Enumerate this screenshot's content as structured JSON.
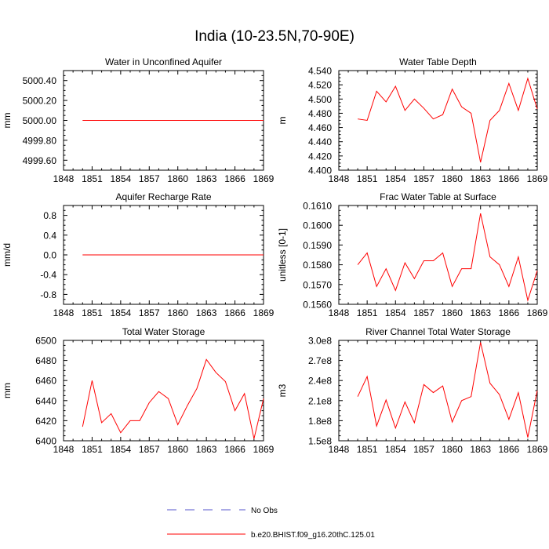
{
  "figure": {
    "title": "India (10-23.5N,70-90E)"
  },
  "legend": {
    "placement": "bottom-center",
    "entries": [
      {
        "label": "No Obs",
        "color": "#5555cc",
        "dash": true
      },
      {
        "label": "b.e20.BHIST.f09_g16.20thC.125.01",
        "color": "#ff0000",
        "dash": false
      }
    ]
  },
  "chart_data": [
    {
      "type": "line",
      "title": "Water in Unconfined Aquifer",
      "ylabel": "mm",
      "xlim": [
        1848,
        1869
      ],
      "ylim": [
        4999.5,
        5000.5
      ],
      "xticks": [
        1848,
        1851,
        1854,
        1857,
        1860,
        1863,
        1866,
        1869
      ],
      "xticklabels": [
        "1848",
        "1851",
        "1854",
        "1857",
        "1860",
        "1863",
        "1866",
        "1869"
      ],
      "yticks": [
        4999.6,
        4999.8,
        5000.0,
        5000.2,
        5000.4
      ],
      "yticklabels": [
        "4999.60",
        "4999.80",
        "5000.00",
        "5000.20",
        "5000.40"
      ],
      "series": [
        {
          "color": "#ff0000",
          "x": [
            1850,
            1869
          ],
          "y": [
            5000.0,
            5000.0
          ]
        }
      ]
    },
    {
      "type": "line",
      "title": "Water Table Depth",
      "ylabel": "m",
      "xlim": [
        1848,
        1869
      ],
      "ylim": [
        4.4,
        4.54
      ],
      "xticks": [
        1848,
        1851,
        1854,
        1857,
        1860,
        1863,
        1866,
        1869
      ],
      "xticklabels": [
        "1848",
        "1851",
        "1854",
        "1857",
        "1860",
        "1863",
        "1866",
        "1869"
      ],
      "yticks": [
        4.4,
        4.42,
        4.44,
        4.46,
        4.48,
        4.5,
        4.52,
        4.54
      ],
      "yticklabels": [
        "4.400",
        "4.420",
        "4.440",
        "4.460",
        "4.480",
        "4.500",
        "4.520",
        "4.540"
      ],
      "series": [
        {
          "color": "#ff0000",
          "x": [
            1850,
            1851,
            1852,
            1853,
            1854,
            1855,
            1856,
            1857,
            1858,
            1859,
            1860,
            1861,
            1862,
            1863,
            1864,
            1865,
            1866,
            1867,
            1868,
            1869
          ],
          "y": [
            4.472,
            4.47,
            4.511,
            4.496,
            4.518,
            4.484,
            4.5,
            4.487,
            4.472,
            4.478,
            4.514,
            4.489,
            4.48,
            4.411,
            4.47,
            4.484,
            4.522,
            4.484,
            4.529,
            4.486
          ]
        }
      ]
    },
    {
      "type": "line",
      "title": "Aquifer Recharge Rate",
      "ylabel": "mm/d",
      "xlim": [
        1848,
        1869
      ],
      "ylim": [
        -1.0,
        1.0
      ],
      "xticks": [
        1848,
        1851,
        1854,
        1857,
        1860,
        1863,
        1866,
        1869
      ],
      "xticklabels": [
        "1848",
        "1851",
        "1854",
        "1857",
        "1860",
        "1863",
        "1866",
        "1869"
      ],
      "yticks": [
        -0.8,
        -0.4,
        0.0,
        0.4,
        0.8
      ],
      "yticklabels": [
        "-0.8",
        "-0.4",
        "0.0",
        "0.4",
        "0.8"
      ],
      "series": [
        {
          "color": "#ff0000",
          "x": [
            1850,
            1869
          ],
          "y": [
            0.0,
            0.0
          ]
        }
      ]
    },
    {
      "type": "line",
      "title": "Frac Water Table at Surface",
      "ylabel": "unitless [0-1]",
      "xlim": [
        1848,
        1869
      ],
      "ylim": [
        0.156,
        0.161
      ],
      "xticks": [
        1848,
        1851,
        1854,
        1857,
        1860,
        1863,
        1866,
        1869
      ],
      "xticklabels": [
        "1848",
        "1851",
        "1854",
        "1857",
        "1860",
        "1863",
        "1866",
        "1869"
      ],
      "yticks": [
        0.156,
        0.157,
        0.158,
        0.159,
        0.16,
        0.161
      ],
      "yticklabels": [
        "0.1560",
        "0.1570",
        "0.1580",
        "0.1590",
        "0.1600",
        "0.1610"
      ],
      "series": [
        {
          "color": "#ff0000",
          "x": [
            1850,
            1851,
            1852,
            1853,
            1854,
            1855,
            1856,
            1857,
            1858,
            1859,
            1860,
            1861,
            1862,
            1863,
            1864,
            1865,
            1866,
            1867,
            1868,
            1869
          ],
          "y": [
            0.158,
            0.1586,
            0.1569,
            0.1578,
            0.1567,
            0.1581,
            0.1573,
            0.1582,
            0.1582,
            0.1586,
            0.1569,
            0.1578,
            0.1578,
            0.1606,
            0.1584,
            0.158,
            0.1569,
            0.1584,
            0.1562,
            0.1577
          ]
        }
      ]
    },
    {
      "type": "line",
      "title": "Total Water Storage",
      "ylabel": "mm",
      "xlim": [
        1848,
        1869
      ],
      "ylim": [
        6400,
        6500
      ],
      "xticks": [
        1848,
        1851,
        1854,
        1857,
        1860,
        1863,
        1866,
        1869
      ],
      "xticklabels": [
        "1848",
        "1851",
        "1854",
        "1857",
        "1860",
        "1863",
        "1866",
        "1869"
      ],
      "yticks": [
        6400,
        6420,
        6440,
        6460,
        6480,
        6500
      ],
      "yticklabels": [
        "6400",
        "6420",
        "6440",
        "6460",
        "6480",
        "6500"
      ],
      "series": [
        {
          "color": "#ff0000",
          "x": [
            1850,
            1851,
            1852,
            1853,
            1854,
            1855,
            1856,
            1857,
            1858,
            1859,
            1860,
            1861,
            1862,
            1863,
            1864,
            1865,
            1866,
            1867,
            1868,
            1869
          ],
          "y": [
            6414,
            6460,
            6418,
            6427,
            6408,
            6420,
            6420,
            6438,
            6449,
            6442,
            6416,
            6435,
            6452,
            6481,
            6468,
            6459,
            6430,
            6447,
            6402,
            6442
          ]
        }
      ]
    },
    {
      "type": "line",
      "title": "River Channel Total Water Storage",
      "ylabel": "m3",
      "xlim": [
        1848,
        1869
      ],
      "ylim": [
        150000000,
        300000000
      ],
      "xticks": [
        1848,
        1851,
        1854,
        1857,
        1860,
        1863,
        1866,
        1869
      ],
      "xticklabels": [
        "1848",
        "1851",
        "1854",
        "1857",
        "1860",
        "1863",
        "1866",
        "1869"
      ],
      "yticks": [
        150000000,
        180000000,
        210000000,
        240000000,
        270000000,
        300000000
      ],
      "yticklabels": [
        "1.5e8",
        "1.8e8",
        "2.1e8",
        "2.4e8",
        "2.7e8",
        "3.0e8"
      ],
      "series": [
        {
          "color": "#ff0000",
          "x": [
            1850,
            1851,
            1852,
            1853,
            1854,
            1855,
            1856,
            1857,
            1858,
            1859,
            1860,
            1861,
            1862,
            1863,
            1864,
            1865,
            1866,
            1867,
            1868,
            1869
          ],
          "y": [
            216000000,
            246000000,
            172000000,
            211000000,
            169000000,
            208000000,
            177000000,
            234000000,
            222000000,
            232000000,
            178000000,
            210000000,
            216000000,
            297000000,
            236000000,
            219000000,
            182000000,
            222000000,
            155000000,
            225000000
          ]
        }
      ]
    }
  ]
}
